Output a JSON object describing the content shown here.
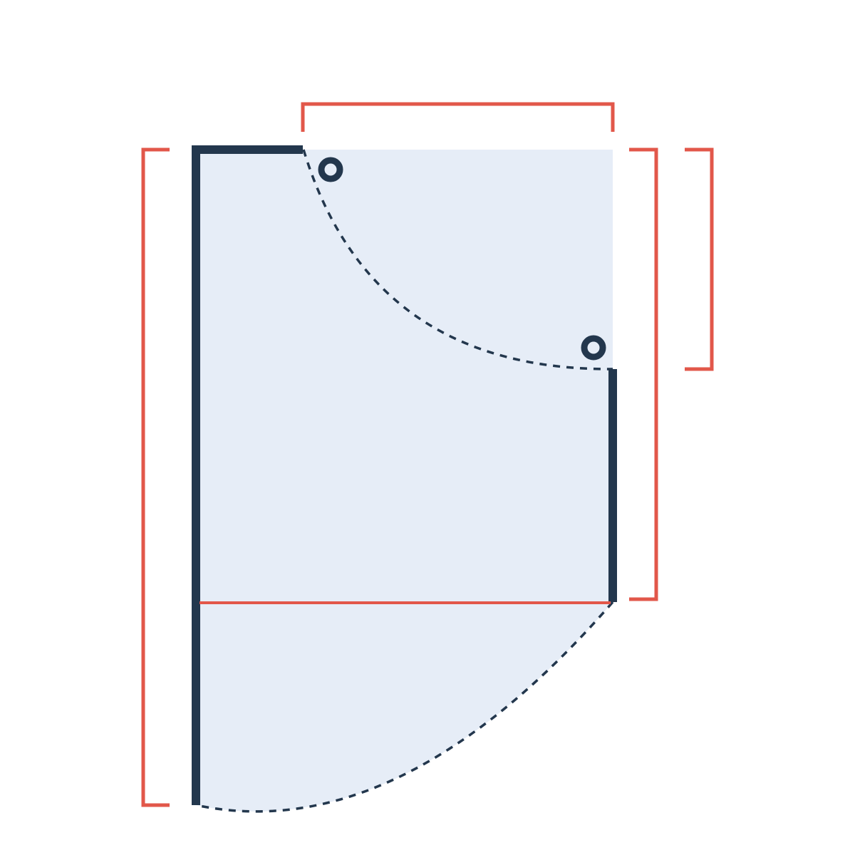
{
  "diagram": {
    "type": "dimensioned-shape-drawing",
    "colors": {
      "background": "#ffffff",
      "fill": "#e6edf7",
      "outline": "#23374d",
      "dimension": "#e2574a"
    }
  }
}
